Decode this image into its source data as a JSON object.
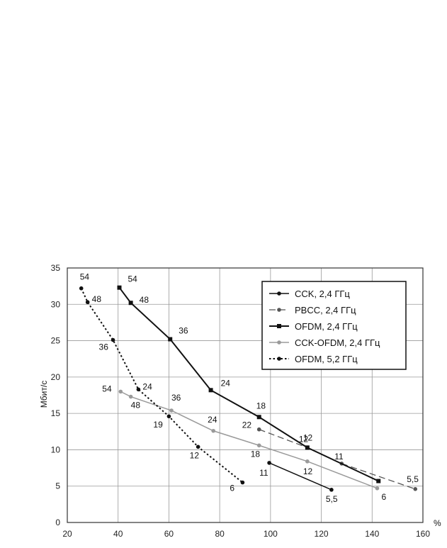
{
  "chart_data": {
    "type": "line",
    "xlabel": "%",
    "ylabel": "Мбит/с",
    "xlim": [
      20,
      160
    ],
    "ylim": [
      0,
      35
    ],
    "x_ticks": [
      20,
      40,
      60,
      80,
      100,
      120,
      140,
      160
    ],
    "y_ticks": [
      0,
      5,
      10,
      15,
      20,
      25,
      30,
      35
    ],
    "grid": true,
    "legend_position": "top-right",
    "series": [
      {
        "name": "CCK, 2,4 ГГц",
        "style": "solid-thin",
        "marker": "circle",
        "color": "#111111",
        "points": [
          {
            "x": 99.5,
            "y": 8.2,
            "label": "11"
          },
          {
            "x": 124,
            "y": 4.5,
            "label": "5,5"
          }
        ]
      },
      {
        "name": "PBCC, 2,4 ГГц",
        "style": "dashed",
        "marker": "circle",
        "color": "#555555",
        "points": [
          {
            "x": 95.5,
            "y": 12.8,
            "label": "22"
          },
          {
            "x": 114.5,
            "y": 10.3,
            "label": "12"
          },
          {
            "x": 128,
            "y": 8.1,
            "label": "11"
          },
          {
            "x": 157,
            "y": 4.6,
            "label": "5,5"
          }
        ]
      },
      {
        "name": "OFDM, 2,4 ГГц",
        "style": "solid-thick",
        "marker": "square",
        "color": "#111111",
        "points": [
          {
            "x": 40.5,
            "y": 32.3,
            "label": "54"
          },
          {
            "x": 45,
            "y": 30.2,
            "label": "48"
          },
          {
            "x": 60.5,
            "y": 25.2,
            "label": "36"
          },
          {
            "x": 76.5,
            "y": 18.2,
            "label": "24"
          },
          {
            "x": 95.5,
            "y": 14.5,
            "label": "18"
          },
          {
            "x": 114.5,
            "y": 10.3,
            "label": "12"
          },
          {
            "x": 142.5,
            "y": 5.7,
            "label": ""
          }
        ]
      },
      {
        "name": "CCK-OFDM, 2,4 ГГц",
        "style": "solid-gray",
        "marker": "circle",
        "color": "#9a9a9a",
        "points": [
          {
            "x": 41,
            "y": 18.0,
            "label": "54"
          },
          {
            "x": 45,
            "y": 17.3,
            "label": "48"
          },
          {
            "x": 61,
            "y": 15.4,
            "label": "36"
          },
          {
            "x": 77.5,
            "y": 12.6,
            "label": "24"
          },
          {
            "x": 95.5,
            "y": 10.6,
            "label": "18"
          },
          {
            "x": 114.5,
            "y": 8.4,
            "label": "12"
          },
          {
            "x": 142,
            "y": 4.7,
            "label": "6"
          }
        ]
      },
      {
        "name": "OFDM, 5,2 ГГц",
        "style": "dotted",
        "marker": "circle",
        "color": "#111111",
        "points": [
          {
            "x": 25.5,
            "y": 32.2,
            "label": "54"
          },
          {
            "x": 28,
            "y": 30.3,
            "label": "48"
          },
          {
            "x": 38,
            "y": 25.1,
            "label": "36"
          },
          {
            "x": 48,
            "y": 18.3,
            "label": "24"
          },
          {
            "x": 60,
            "y": 14.6,
            "label": "19"
          },
          {
            "x": 71.5,
            "y": 10.4,
            "label": "12"
          },
          {
            "x": 89,
            "y": 5.5,
            "label": "6"
          }
        ]
      }
    ]
  }
}
